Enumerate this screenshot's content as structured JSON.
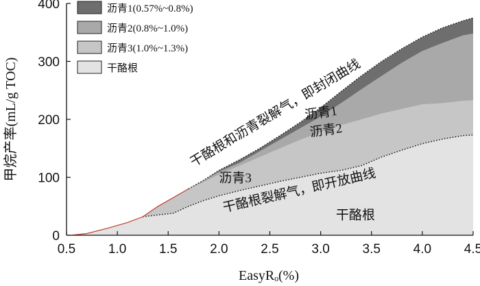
{
  "chart_data": {
    "type": "area",
    "xlabel": "EasyRₒ(%)",
    "ylabel": "甲烷产率(mL/g TOC)",
    "xlim": [
      0.5,
      4.5
    ],
    "ylim": [
      0,
      400
    ],
    "x_ticks": [
      "0.5",
      "1.0",
      "1.5",
      "2.0",
      "2.5",
      "3.0",
      "3.5",
      "4.0",
      "4.5"
    ],
    "y_ticks": [
      "0",
      "100",
      "200",
      "300",
      "400"
    ],
    "grid": false,
    "legend_position": "top-left",
    "series": [
      {
        "name": "干酪根",
        "color": "#e3e3e3",
        "x": [
          0.55,
          0.7,
          0.9,
          1.1,
          1.25,
          1.4,
          1.55,
          1.7,
          1.85,
          2.0,
          2.2,
          2.4,
          2.6,
          2.8,
          3.0,
          3.2,
          3.4,
          3.6,
          3.8,
          4.0,
          4.2,
          4.4,
          4.5
        ],
        "y": [
          0,
          3,
          12,
          22,
          32,
          35,
          38,
          50,
          60,
          68,
          77,
          85,
          93,
          100,
          107,
          112,
          120,
          135,
          147,
          158,
          166,
          172,
          173
        ]
      },
      {
        "name": "沥青3(1.0%~1.3%)",
        "color": "#c6c6c6",
        "x": [
          0.55,
          0.7,
          0.9,
          1.1,
          1.25,
          1.4,
          1.55,
          1.7,
          1.85,
          2.0,
          2.2,
          2.4,
          2.6,
          2.8,
          3.0,
          3.2,
          3.4,
          3.6,
          3.8,
          4.0,
          4.2,
          4.4,
          4.5
        ],
        "y": [
          0,
          3,
          12,
          22,
          32,
          50,
          65,
          80,
          92,
          105,
          120,
          135,
          150,
          165,
          178,
          190,
          200,
          210,
          218,
          226,
          228,
          232,
          233
        ]
      },
      {
        "name": "沥青2(0.8%~1.0%)",
        "color": "#a9a9a9",
        "x": [
          0.55,
          0.7,
          0.9,
          1.1,
          1.25,
          1.4,
          1.55,
          1.7,
          1.85,
          2.0,
          2.2,
          2.4,
          2.6,
          2.8,
          3.0,
          3.2,
          3.4,
          3.6,
          3.8,
          4.0,
          4.2,
          4.4,
          4.5
        ],
        "y": [
          0,
          3,
          12,
          22,
          32,
          50,
          65,
          80,
          95,
          110,
          125,
          145,
          165,
          185,
          205,
          228,
          252,
          275,
          298,
          318,
          332,
          345,
          348
        ]
      },
      {
        "name": "沥青1(0.57%~0.8%)",
        "color": "#6e6e6e",
        "x": [
          0.55,
          0.7,
          0.9,
          1.1,
          1.25,
          1.4,
          1.55,
          1.7,
          1.85,
          2.0,
          2.2,
          2.4,
          2.6,
          2.8,
          3.0,
          3.2,
          3.4,
          3.6,
          3.8,
          4.0,
          4.2,
          4.4,
          4.5
        ],
        "y": [
          0,
          3,
          12,
          22,
          32,
          50,
          65,
          80,
          95,
          112,
          130,
          150,
          172,
          195,
          220,
          248,
          275,
          300,
          322,
          342,
          358,
          370,
          375
        ]
      }
    ],
    "annotations": [
      {
        "text": "干酪根和沥青裂解气，即封闭曲线",
        "x": 1.75,
        "y": 118,
        "rotate": -31
      },
      {
        "text": "沥青1",
        "x": 2.85,
        "y": 200,
        "rotate": -8
      },
      {
        "text": "沥青2",
        "x": 2.9,
        "y": 170,
        "rotate": -8
      },
      {
        "text": "沥青3",
        "x": 2.0,
        "y": 92,
        "rotate": 0
      },
      {
        "text": "干酪根裂解气，即开放曲线",
        "x": 2.05,
        "y": 40,
        "rotate": -13
      },
      {
        "text": "干酪根",
        "x": 3.15,
        "y": 28,
        "rotate": 0
      }
    ],
    "label_colors": {
      "early_curve": "#c0392b"
    }
  }
}
